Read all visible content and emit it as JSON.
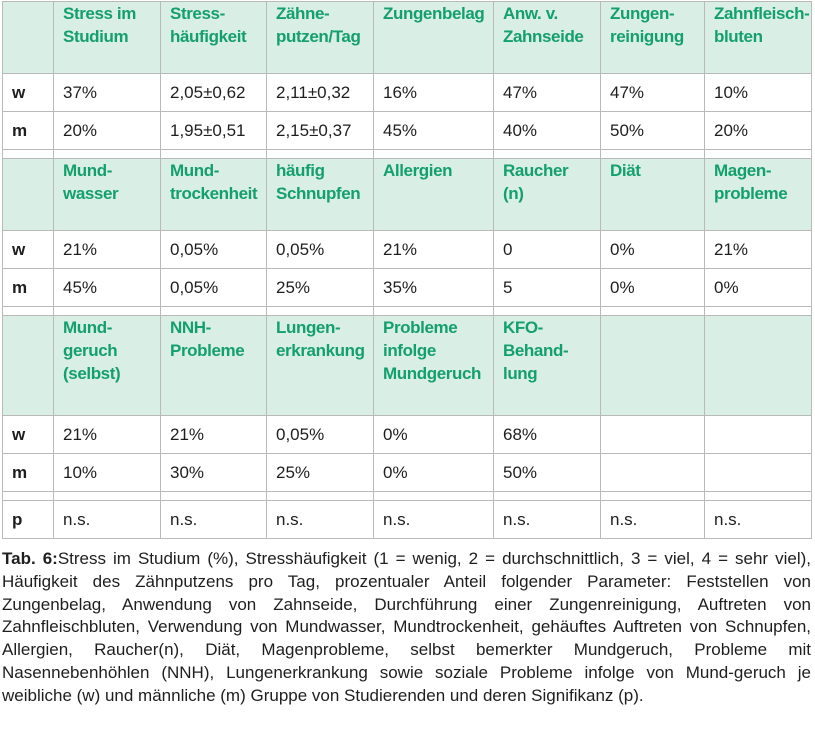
{
  "blocks": [
    {
      "headers": [
        "Stress im Studium",
        "Stress-häufigkeit",
        "Zähne-putzen/Tag",
        "Zungenbelag",
        "Anw. v. Zahnseide",
        "Zungen-reinigung",
        "Zahnfleisch-bluten"
      ],
      "header_lines": [
        [
          "Stress im",
          "Studium"
        ],
        [
          "Stress-",
          "häufigkeit"
        ],
        [
          "Zähne-",
          "putzen/Tag"
        ],
        [
          "Zungenbelag"
        ],
        [
          "Anw. v.",
          "Zahnseide"
        ],
        [
          "Zungen-",
          "reinigung"
        ],
        [
          "Zahnfleisch-",
          "bluten"
        ]
      ],
      "rows": [
        {
          "label": "w",
          "values": [
            "37%",
            "2,05±0,62",
            "2,11±0,32",
            "16%",
            "47%",
            "47%",
            "10%"
          ]
        },
        {
          "label": "m",
          "values": [
            "20%",
            "1,95±0,51",
            "2,15±0,37",
            "45%",
            "40%",
            "50%",
            "20%"
          ]
        }
      ]
    },
    {
      "header_lines": [
        [
          "Mund-",
          "wasser"
        ],
        [
          "Mund-",
          "trockenheit"
        ],
        [
          "häufig",
          "Schnupfen"
        ],
        [
          "Allergien"
        ],
        [
          "Raucher",
          "(n)"
        ],
        [
          "Diät"
        ],
        [
          "Magen-",
          "probleme"
        ]
      ],
      "rows": [
        {
          "label": "w",
          "values": [
            "21%",
            "0,05%",
            "0,05%",
            "21%",
            "0",
            "0%",
            "21%"
          ]
        },
        {
          "label": "m",
          "values": [
            "45%",
            "0,05%",
            "25%",
            "35%",
            "5",
            "0%",
            "0%"
          ]
        }
      ]
    },
    {
      "header_lines": [
        [
          "Mund-",
          "geruch",
          "(selbst)"
        ],
        [
          "NNH-",
          "Probleme"
        ],
        [
          "Lungen-",
          "erkrankung"
        ],
        [
          "Probleme",
          "infolge",
          "Mundgeruch"
        ],
        [
          "KFO-",
          "Behand-",
          "lung"
        ],
        [
          ""
        ],
        [
          ""
        ]
      ],
      "rows": [
        {
          "label": "w",
          "values": [
            "21%",
            "21%",
            "0,05%",
            "0%",
            "68%",
            "",
            ""
          ]
        },
        {
          "label": "m",
          "values": [
            "10%",
            "30%",
            "25%",
            "0%",
            "50%",
            "",
            ""
          ]
        }
      ]
    }
  ],
  "p_row": {
    "label": "p",
    "values": [
      "n.s.",
      "n.s.",
      "n.s.",
      "n.s.",
      "n.s.",
      "n.s.",
      "n.s."
    ]
  },
  "caption": {
    "label": "Tab. 6:",
    "text": "Stress im Studium (%), Stresshäufigkeit (1 = wenig, 2 = durchschnittlich, 3 = viel, 4 = sehr viel), Häufigkeit des Zähnputzens pro Tag, prozentualer Anteil folgender Parameter: Feststellen von Zungenbelag, Anwendung von Zahnseide, Durchführung einer Zungenreinigung, Auftreten von Zahnfleischbluten, Verwendung von Mundwasser, Mundtrockenheit, gehäuftes Auftreten von Schnupfen, Allergien, Raucher(n), Diät, Magenprobleme, selbst bemerkter Mundgeruch, Probleme mit Nasennebenhöhlen (NNH), Lungenerkrankung sowie soziale Probleme infolge von Mund-geruch je weibliche (w) und männliche (m) Gruppe von Studierenden und deren Signifikanz (p)."
  },
  "colors": {
    "header_background": "#d9eee4",
    "header_text": "#14a06c",
    "grid_lines": "#b9b9b9"
  }
}
